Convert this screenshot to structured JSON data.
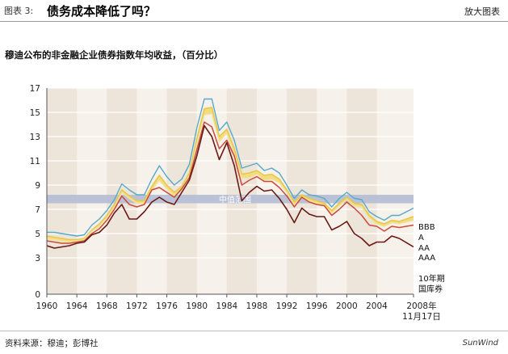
{
  "header": {
    "figure_label": "图表 3:",
    "title": "债务成本降低了吗？",
    "enlarge_label": "放大图表"
  },
  "footer": {
    "source": "资料来源：穆迪；彭博社",
    "watermark": "SunWind"
  },
  "colors": {
    "bbb": "#55aac8",
    "a": "#e8c84a",
    "aa": "#f0e29a",
    "aaa": "#cc4a3a",
    "treasury": "#6a1a14",
    "band": "#b4bdd6",
    "shade": "#ede4da",
    "panel": "#f6f1ea"
  },
  "chart_data": {
    "type": "line",
    "title": "穆迪公布的非金融企业债券指数年均收益，（百分比）",
    "xlabel": "",
    "ylabel": "",
    "xlim": [
      1960,
      2008.9
    ],
    "ylim": [
      0,
      17
    ],
    "yticks": [
      0,
      3,
      5,
      7,
      9,
      11,
      13,
      15,
      17
    ],
    "xticks": [
      "1960",
      "1964",
      "1968",
      "1972",
      "1976",
      "1980",
      "1984",
      "1988",
      "1992",
      "1996",
      "2000",
      "2004"
    ],
    "x_end_label": [
      "2008年",
      "11月17日"
    ],
    "band": {
      "label": "中值范围",
      "from": 7.5,
      "to": 8.2
    },
    "x": [
      1960,
      1961,
      1962,
      1963,
      1964,
      1965,
      1966,
      1967,
      1968,
      1969,
      1970,
      1971,
      1972,
      1973,
      1974,
      1975,
      1976,
      1977,
      1978,
      1979,
      1980,
      1981,
      1982,
      1983,
      1984,
      1985,
      1986,
      1987,
      1988,
      1989,
      1990,
      1991,
      1992,
      1993,
      1994,
      1995,
      1996,
      1997,
      1998,
      1999,
      2000,
      2001,
      2002,
      2003,
      2004,
      2005,
      2006,
      2007,
      2008.9
    ],
    "series": [
      {
        "name": "BBB",
        "values": [
          5.1,
          5.1,
          5.0,
          4.9,
          4.8,
          4.9,
          5.7,
          6.2,
          6.9,
          7.8,
          9.1,
          8.6,
          8.2,
          8.2,
          9.5,
          10.6,
          9.7,
          9.0,
          9.5,
          10.7,
          13.7,
          16.1,
          16.1,
          13.5,
          14.2,
          12.7,
          10.4,
          10.6,
          10.8,
          10.2,
          10.4,
          10.0,
          9.0,
          7.9,
          8.6,
          8.2,
          8.1,
          7.9,
          7.2,
          7.9,
          8.4,
          7.9,
          7.8,
          6.8,
          6.4,
          6.1,
          6.5,
          6.5,
          7.1
        ]
      },
      {
        "name": "A",
        "values": [
          4.8,
          4.7,
          4.6,
          4.5,
          4.5,
          4.6,
          5.3,
          5.8,
          6.5,
          7.4,
          8.6,
          8.1,
          7.7,
          7.7,
          8.9,
          9.8,
          9.0,
          8.4,
          8.9,
          10.0,
          12.8,
          15.3,
          15.4,
          13.0,
          13.6,
          12.0,
          9.9,
          10.0,
          10.2,
          9.8,
          9.9,
          9.5,
          8.6,
          7.6,
          8.2,
          7.9,
          7.7,
          7.5,
          6.9,
          7.5,
          8.0,
          7.5,
          7.4,
          6.5,
          6.0,
          5.8,
          6.1,
          6.0,
          6.4
        ]
      },
      {
        "name": "AA",
        "values": [
          4.6,
          4.5,
          4.4,
          4.3,
          4.4,
          4.5,
          5.2,
          5.6,
          6.3,
          7.2,
          8.4,
          7.9,
          7.5,
          7.5,
          8.6,
          9.4,
          8.7,
          8.1,
          8.6,
          9.7,
          12.4,
          14.8,
          14.9,
          12.6,
          13.3,
          11.6,
          9.6,
          9.6,
          9.9,
          9.4,
          9.5,
          9.2,
          8.4,
          7.4,
          8.0,
          7.7,
          7.5,
          7.3,
          6.7,
          7.3,
          7.8,
          7.3,
          7.2,
          6.3,
          5.8,
          5.6,
          5.9,
          5.8,
          6.1
        ]
      },
      {
        "name": "AAA",
        "values": [
          4.4,
          4.3,
          4.2,
          4.2,
          4.3,
          4.4,
          5.0,
          5.4,
          6.1,
          7.0,
          8.1,
          7.4,
          7.2,
          7.4,
          8.6,
          8.8,
          8.4,
          8.0,
          8.7,
          9.6,
          11.9,
          14.2,
          13.8,
          12.0,
          12.7,
          11.4,
          9.0,
          9.4,
          9.7,
          9.3,
          9.3,
          8.8,
          8.1,
          7.2,
          8.0,
          7.6,
          7.4,
          7.3,
          6.5,
          7.0,
          7.6,
          7.1,
          6.5,
          5.7,
          5.6,
          5.2,
          5.6,
          5.5,
          5.7
        ]
      },
      {
        "name": "10年期 国库券",
        "values": [
          4.0,
          3.8,
          3.9,
          4.0,
          4.2,
          4.3,
          4.9,
          5.1,
          5.7,
          6.7,
          7.4,
          6.2,
          6.2,
          6.8,
          7.6,
          8.0,
          7.6,
          7.4,
          8.4,
          9.4,
          11.4,
          13.9,
          13.0,
          11.1,
          12.5,
          10.6,
          7.7,
          8.4,
          8.9,
          8.5,
          8.6,
          7.9,
          7.0,
          5.9,
          7.1,
          6.6,
          6.4,
          6.4,
          5.3,
          5.6,
          6.0,
          5.0,
          4.6,
          4.0,
          4.3,
          4.3,
          4.8,
          4.6,
          3.9
        ]
      }
    ],
    "legend": [
      "BBB",
      "A",
      "AA",
      "AAA",
      "10年期",
      "国库券"
    ],
    "legend_placement": "right"
  }
}
